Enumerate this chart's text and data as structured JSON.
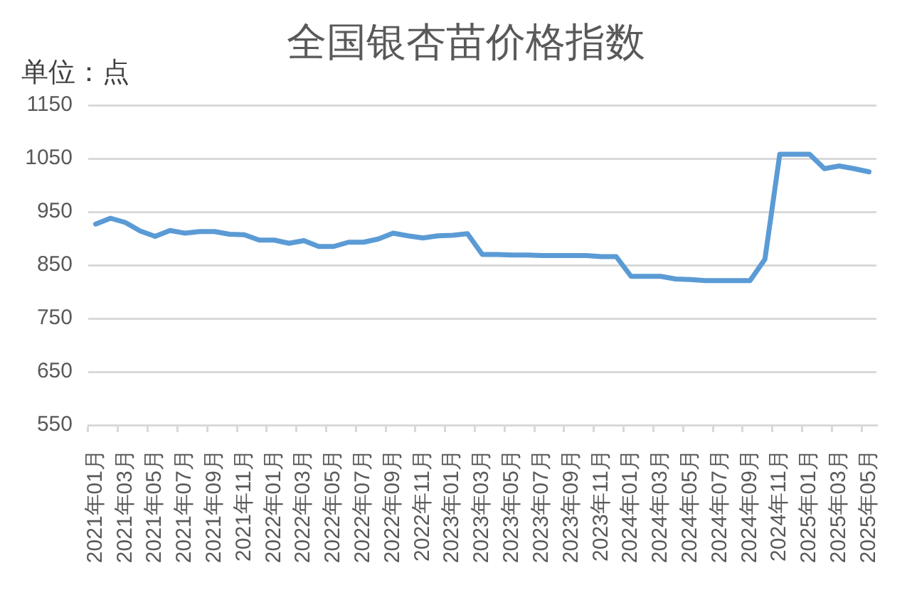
{
  "chart_data": {
    "type": "line",
    "title": "全国银杏苗价格指数",
    "ylabel": "单位：点",
    "categories": [
      "2021年01月",
      null,
      "2021年03月",
      null,
      "2021年05月",
      null,
      "2021年07月",
      null,
      "2021年09月",
      null,
      "2021年11月",
      null,
      "2022年01月",
      null,
      "2022年03月",
      null,
      "2022年05月",
      null,
      "2022年07月",
      null,
      "2022年09月",
      null,
      "2022年11月",
      null,
      "2023年01月",
      null,
      "2023年03月",
      null,
      "2023年05月",
      null,
      "2023年07月",
      null,
      "2023年09月",
      null,
      "2023年11月",
      null,
      "2024年01月",
      null,
      "2024年03月",
      null,
      "2024年05月",
      null,
      "2024年07月",
      null,
      "2024年09月",
      null,
      "2024年11月",
      null,
      "2025年01月",
      null,
      "2025年03月",
      null,
      "2025年05月"
    ],
    "series": [
      {
        "color": "#5b9bd5",
        "values": [
          927,
          938,
          930,
          914,
          904,
          915,
          910,
          913,
          913,
          908,
          907,
          897,
          897,
          891,
          896,
          885,
          885,
          893,
          893,
          899,
          910,
          905,
          901,
          905,
          906,
          909,
          870,
          870,
          869,
          869,
          868,
          868,
          868,
          868,
          866,
          866,
          829,
          829,
          829,
          824,
          823,
          821,
          821,
          821,
          821,
          861,
          1058,
          1058,
          1058,
          1031,
          1036,
          1031,
          1025
        ]
      }
    ],
    "ylim": [
      550,
      1150
    ],
    "yticks": [
      550,
      650,
      750,
      850,
      950,
      1050,
      1150
    ],
    "grid": "y",
    "marker": "none",
    "line_style": "solid"
  }
}
